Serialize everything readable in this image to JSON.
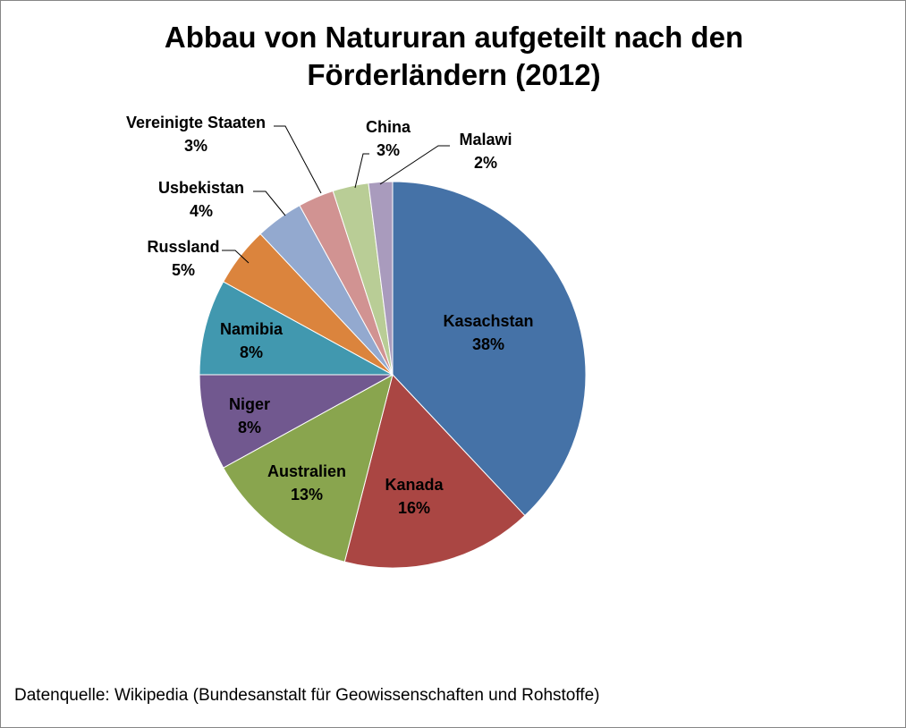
{
  "chart_data": {
    "type": "pie",
    "title_line1": "Abbau von Natururan aufgeteilt nach den",
    "title_line2": "Förderländern (2012)",
    "source": "Datenquelle: Wikipedia (Bundesanstalt für Geowissenschaften und Rohstoffe)",
    "start_angle_deg": 0,
    "direction": "clockwise",
    "slices": [
      {
        "label": "Kasachstan",
        "value": 38,
        "pct_label": "38%",
        "color": "#4572A7"
      },
      {
        "label": "Kanada",
        "value": 16,
        "pct_label": "16%",
        "color": "#AA4643"
      },
      {
        "label": "Australien",
        "value": 13,
        "pct_label": "13%",
        "color": "#89A54E"
      },
      {
        "label": "Niger",
        "value": 8,
        "pct_label": "8%",
        "color": "#71588F"
      },
      {
        "label": "Namibia",
        "value": 8,
        "pct_label": "8%",
        "color": "#4198AF"
      },
      {
        "label": "Russland",
        "value": 5,
        "pct_label": "5%",
        "color": "#DB843D"
      },
      {
        "label": "Usbekistan",
        "value": 4,
        "pct_label": "4%",
        "color": "#93A9CF"
      },
      {
        "label": "Vereinigte Staaten",
        "value": 3,
        "pct_label": "3%",
        "color": "#D19392"
      },
      {
        "label": "China",
        "value": 3,
        "pct_label": "3%",
        "color": "#B9CD96"
      },
      {
        "label": "Malawi",
        "value": 2,
        "pct_label": "2%",
        "color": "#A99BBD"
      }
    ]
  }
}
